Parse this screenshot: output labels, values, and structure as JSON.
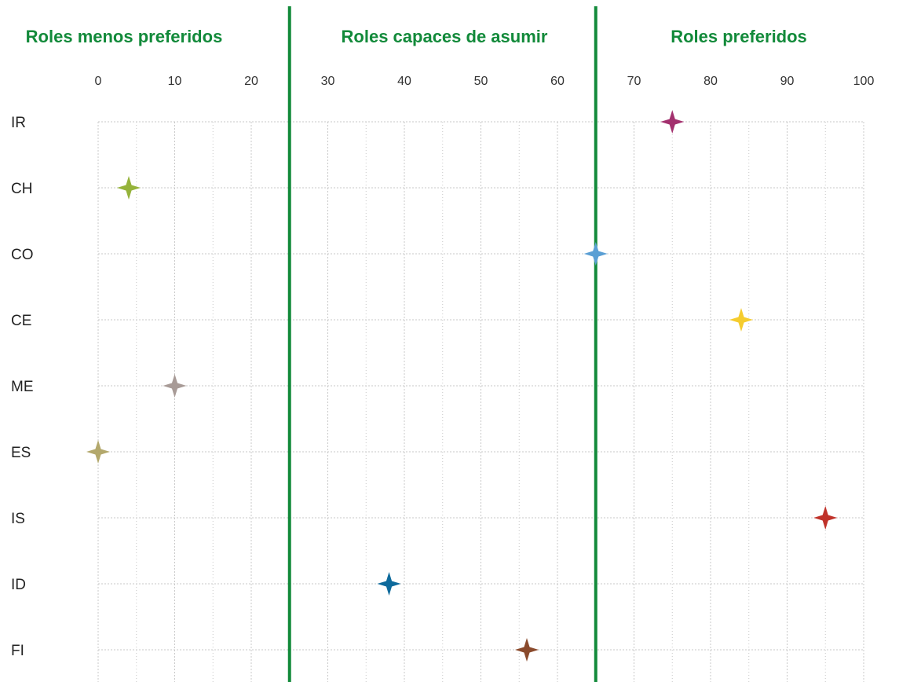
{
  "chart_data": {
    "type": "scatter",
    "title": "",
    "xlabel": "",
    "ylabel": "",
    "xlim": [
      0,
      100
    ],
    "x_ticks": [
      "0",
      "10",
      "20",
      "30",
      "40",
      "50",
      "60",
      "70",
      "80",
      "90",
      "100"
    ],
    "categories": [
      "IR",
      "CH",
      "CO",
      "CE",
      "ME",
      "ES",
      "IS",
      "ID",
      "FI"
    ],
    "values": [
      75,
      4,
      65,
      84,
      10,
      0,
      95,
      38,
      56
    ],
    "colors": [
      "#a3306e",
      "#95b33a",
      "#5a9fd4",
      "#f5cc2e",
      "#a89b97",
      "#b3a86c",
      "#c0322a",
      "#0e6a9c",
      "#8a4a2c"
    ],
    "marker": "four-point-star",
    "grid": true,
    "zone_dividers": [
      25,
      65
    ],
    "zones": [
      {
        "label": "Roles menos preferidos",
        "from": 0,
        "to": 25
      },
      {
        "label": "Roles capaces de asumir",
        "from": 25,
        "to": 65
      },
      {
        "label": "Roles preferidos",
        "from": 65,
        "to": 100
      }
    ],
    "divider_color": "#128a3a",
    "zone_title_color": "#128a3a"
  }
}
